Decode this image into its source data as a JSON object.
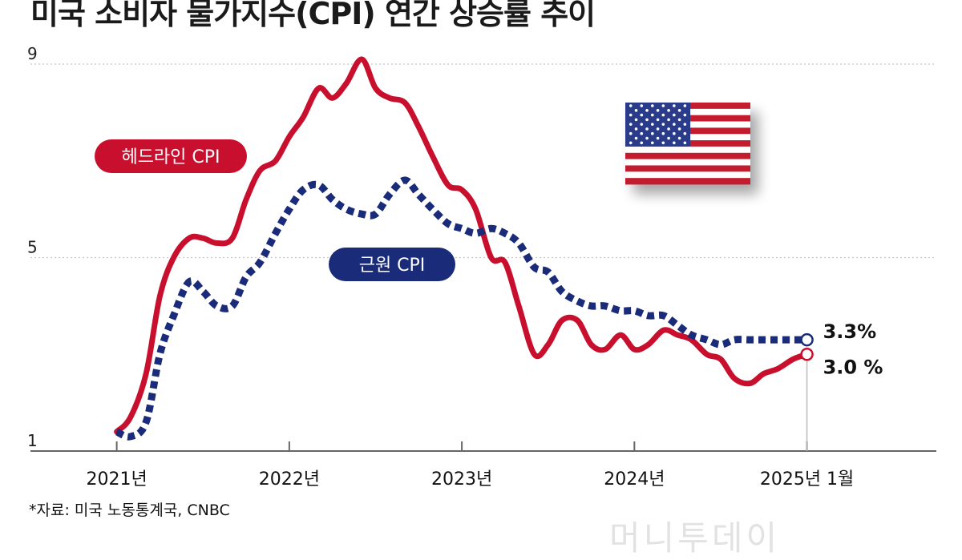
{
  "title": "미국 소비자 물가지수(CPI) 연간 상승률 추이",
  "source": "*자료: 미국 노동통계국, CNBC",
  "watermark": "머니투데이",
  "colors": {
    "headline": "#c8102e",
    "core": "#1a2b7a",
    "grid": "#c8c8c8",
    "axis": "#666666"
  },
  "chart_data": {
    "type": "line",
    "title": "미국 소비자 물가지수(CPI) 연간 상승률 추이",
    "xlabel": "",
    "ylabel": "",
    "ylim": [
      1,
      9
    ],
    "yticks": [
      "9",
      "5",
      "1"
    ],
    "xticks": [
      {
        "label": "2021년",
        "x": 2021.0
      },
      {
        "label": "2022년",
        "x": 2022.0
      },
      {
        "label": "2023년",
        "x": 2023.0
      },
      {
        "label": "2024년",
        "x": 2024.0
      },
      {
        "label": "2025년 1월",
        "x": 2025.0
      }
    ],
    "x_range": [
      2020.5,
      2025.75
    ],
    "series": [
      {
        "name": "헤드라인 CPI",
        "style": "solid",
        "end_label": "3.0 %",
        "x": [
          2021.0,
          2021.08,
          2021.17,
          2021.25,
          2021.33,
          2021.42,
          2021.5,
          2021.58,
          2021.67,
          2021.75,
          2021.83,
          2021.92,
          2022.0,
          2022.08,
          2022.17,
          2022.25,
          2022.33,
          2022.42,
          2022.5,
          2022.58,
          2022.67,
          2022.75,
          2022.83,
          2022.92,
          2023.0,
          2023.08,
          2023.17,
          2023.25,
          2023.33,
          2023.42,
          2023.5,
          2023.58,
          2023.67,
          2023.75,
          2023.83,
          2023.92,
          2024.0,
          2024.08,
          2024.17,
          2024.25,
          2024.33,
          2024.42,
          2024.5,
          2024.58,
          2024.67,
          2024.75,
          2024.83,
          2024.92,
          2025.0
        ],
        "values": [
          1.4,
          1.7,
          2.6,
          4.2,
          5.0,
          5.4,
          5.4,
          5.3,
          5.4,
          6.2,
          6.8,
          7.0,
          7.5,
          7.9,
          8.5,
          8.3,
          8.6,
          9.1,
          8.5,
          8.3,
          8.2,
          7.7,
          7.1,
          6.5,
          6.4,
          6.0,
          5.0,
          4.9,
          4.0,
          3.0,
          3.2,
          3.7,
          3.7,
          3.2,
          3.1,
          3.4,
          3.1,
          3.2,
          3.5,
          3.4,
          3.3,
          3.0,
          2.9,
          2.5,
          2.4,
          2.6,
          2.7,
          2.9,
          3.0
        ]
      },
      {
        "name": "근원 CPI",
        "style": "dotted",
        "end_label": "3.3%",
        "x": [
          2021.0,
          2021.08,
          2021.17,
          2021.25,
          2021.33,
          2021.42,
          2021.5,
          2021.58,
          2021.67,
          2021.75,
          2021.83,
          2021.92,
          2022.0,
          2022.08,
          2022.17,
          2022.25,
          2022.33,
          2022.42,
          2022.5,
          2022.58,
          2022.67,
          2022.75,
          2022.83,
          2022.92,
          2023.0,
          2023.08,
          2023.17,
          2023.25,
          2023.33,
          2023.42,
          2023.5,
          2023.58,
          2023.67,
          2023.75,
          2023.83,
          2023.92,
          2024.0,
          2024.08,
          2024.17,
          2024.25,
          2024.33,
          2024.42,
          2024.5,
          2024.58,
          2024.67,
          2024.75,
          2024.83,
          2024.92,
          2025.0
        ],
        "values": [
          1.4,
          1.3,
          1.6,
          3.0,
          3.8,
          4.5,
          4.3,
          4.0,
          4.0,
          4.6,
          4.9,
          5.5,
          6.0,
          6.4,
          6.5,
          6.2,
          6.0,
          5.9,
          5.9,
          6.3,
          6.6,
          6.3,
          6.0,
          5.7,
          5.6,
          5.5,
          5.6,
          5.5,
          5.3,
          4.8,
          4.7,
          4.3,
          4.1,
          4.0,
          4.0,
          3.9,
          3.9,
          3.8,
          3.8,
          3.6,
          3.4,
          3.3,
          3.2,
          3.3,
          3.3,
          3.3,
          3.3,
          3.3,
          3.3
        ]
      }
    ],
    "legend": [
      {
        "label": "헤드라인 CPI",
        "placement": "upper-left"
      },
      {
        "label": "근원 CPI",
        "placement": "center"
      }
    ]
  }
}
